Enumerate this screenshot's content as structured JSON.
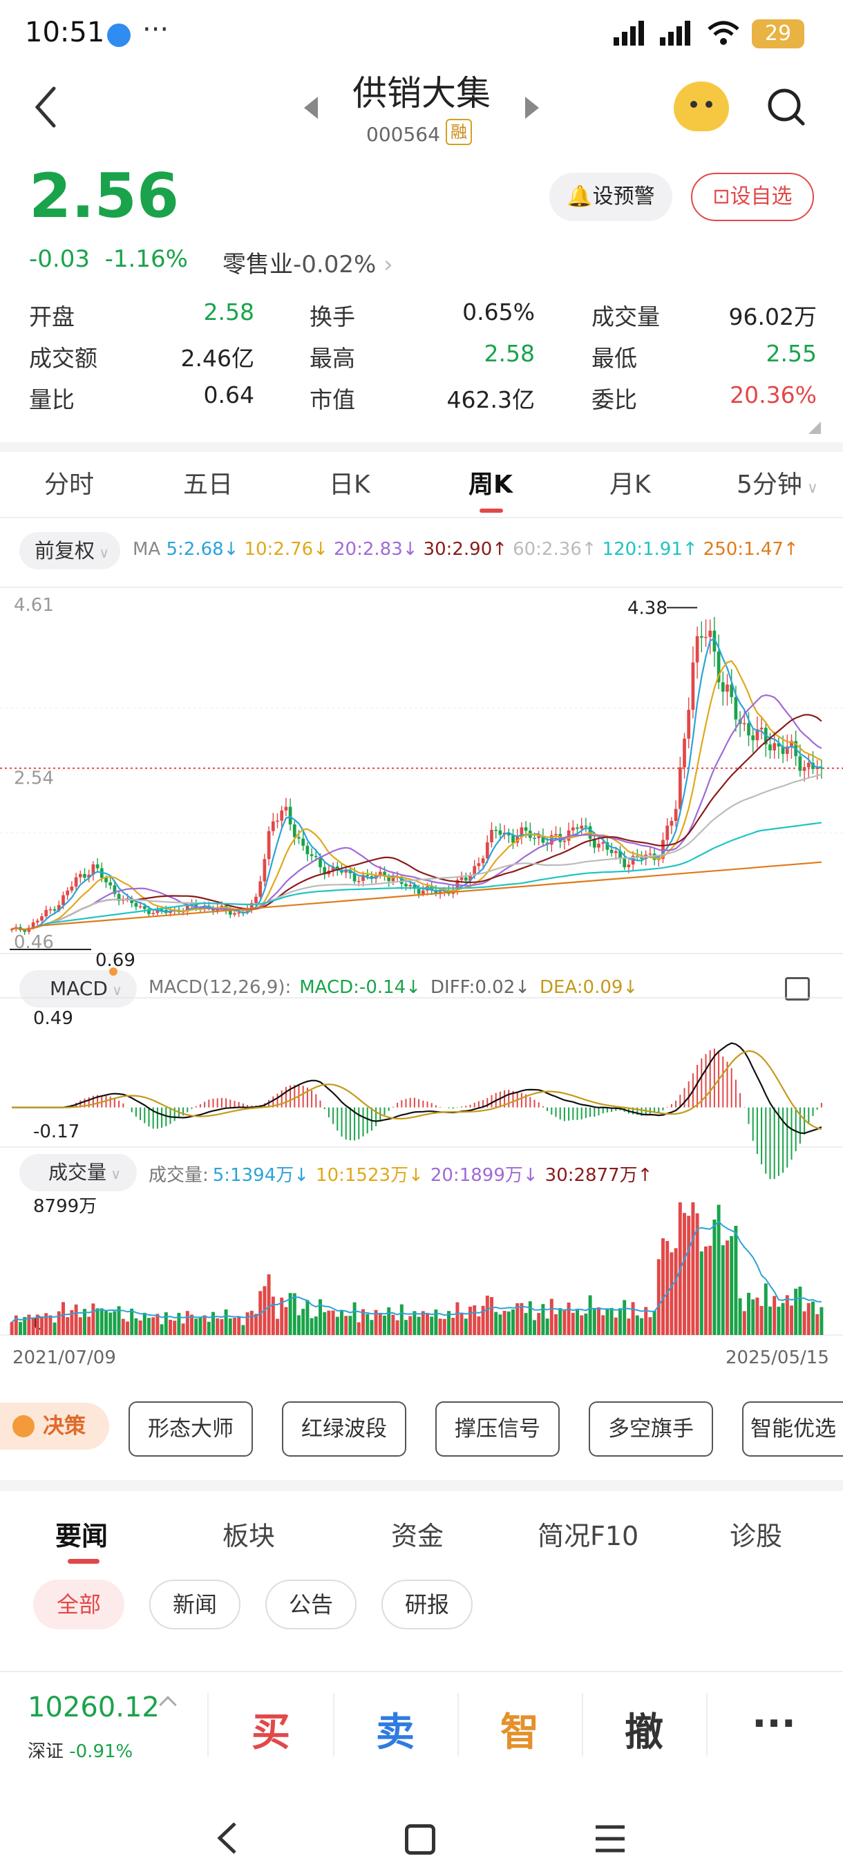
{
  "status_bar": {
    "time": "10:51",
    "battery": "29"
  },
  "header": {
    "stock_name": "供销大集",
    "stock_code": "000564",
    "margin_badge": "融"
  },
  "quote": {
    "price": "2.56",
    "change": "-0.03",
    "change_pct": "-1.16%",
    "sector_name": "零售业",
    "sector_change": "-0.02%",
    "alert_label": "设预警",
    "watchlist_label": "设自选",
    "price_color": "#1aa34a"
  },
  "stats": [
    {
      "label": "开盘",
      "value": "2.58",
      "tone": "green"
    },
    {
      "label": "换手",
      "value": "0.65%",
      "tone": "normal"
    },
    {
      "label": "成交量",
      "value": "96.02万",
      "tone": "normal"
    },
    {
      "label": "成交额",
      "value": "2.46亿",
      "tone": "normal"
    },
    {
      "label": "最高",
      "value": "2.58",
      "tone": "green"
    },
    {
      "label": "最低",
      "value": "2.55",
      "tone": "green"
    },
    {
      "label": "量比",
      "value": "0.64",
      "tone": "normal"
    },
    {
      "label": "市值",
      "value": "462.3亿",
      "tone": "normal"
    },
    {
      "label": "委比",
      "value": "20.36%",
      "tone": "red"
    }
  ],
  "kline_tabs": [
    "分时",
    "五日",
    "日K",
    "周K",
    "月K",
    "5分钟"
  ],
  "kline_active": "周K",
  "ma_bar": {
    "adjust_label": "前复权",
    "prefix": "MA",
    "items": [
      {
        "text": "5:2.68↓",
        "color": "#2aa3d9"
      },
      {
        "text": "10:2.76↓",
        "color": "#e0a81a"
      },
      {
        "text": "20:2.83↓",
        "color": "#a06ad8"
      },
      {
        "text": "30:2.90↑",
        "color": "#8b1a1a"
      },
      {
        "text": "60:2.36↑",
        "color": "#bbbbbb"
      },
      {
        "text": "120:1.91↑",
        "color": "#1fc3c3"
      },
      {
        "text": "250:1.47↑",
        "color": "#e07a1a"
      }
    ]
  },
  "macd_bar": {
    "button": "MACD",
    "params": "MACD(12,26,9):",
    "items": [
      {
        "text": "MACD:-0.14↓",
        "color": "#1aa34a"
      },
      {
        "text": "DIFF:0.02↓",
        "color": "#666666"
      },
      {
        "text": "DEA:0.09↓",
        "color": "#c49a1a"
      }
    ]
  },
  "volume_bar": {
    "button": "成交量",
    "prefix": "成交量:",
    "items": [
      {
        "text": "5:1394万↓",
        "color": "#2aa3d9"
      },
      {
        "text": "10:1523万↓",
        "color": "#e0a81a"
      },
      {
        "text": "20:1899万↓",
        "color": "#a06ad8"
      },
      {
        "text": "30:2877万↑",
        "color": "#8b1a1a"
      }
    ]
  },
  "chart_data": [
    {
      "type": "candlestick",
      "title": "",
      "y_top_label": "4.61",
      "y_mid_label": "2.54",
      "y_bottom_label": "0.46",
      "ylim": [
        0.46,
        4.61
      ],
      "max_annotation": "4.38",
      "min_annotation": "0.69",
      "current_price_line": 2.56,
      "series": [
        {
          "name": "MA5",
          "color": "#2aa3d9"
        },
        {
          "name": "MA10",
          "color": "#e0a81a"
        },
        {
          "name": "MA20",
          "color": "#a06ad8"
        },
        {
          "name": "MA30",
          "color": "#8b1a1a"
        },
        {
          "name": "MA60",
          "color": "#bbbbbb"
        },
        {
          "name": "MA120",
          "color": "#1fc3c3"
        },
        {
          "name": "MA250",
          "color": "#e07a1a"
        }
      ],
      "approx_close_trend": [
        0.72,
        0.75,
        0.9,
        1.05,
        1.3,
        1.45,
        1.22,
        1.05,
        0.98,
        0.92,
        0.95,
        0.98,
        1.0,
        0.95,
        0.92,
        1.0,
        1.95,
        2.05,
        1.65,
        1.45,
        1.4,
        1.35,
        1.3,
        1.38,
        1.25,
        1.2,
        1.15,
        1.18,
        1.3,
        1.55,
        1.9,
        1.75,
        1.85,
        1.7,
        1.8,
        1.9,
        1.75,
        1.6,
        1.5,
        1.55,
        1.6,
        2.1,
        3.7,
        4.2,
        3.4,
        3.1,
        2.9,
        2.85,
        2.75,
        2.6,
        2.56
      ]
    },
    {
      "type": "macd",
      "y_top_label": "0.49",
      "y_bottom_label": "-0.17",
      "ylim": [
        -0.17,
        0.49
      ],
      "macd": -0.14,
      "diff": 0.02,
      "dea": 0.09
    },
    {
      "type": "bar",
      "title": "成交量",
      "y_top_label": "8799万",
      "y_bottom_label": "0",
      "ylim": [
        0,
        8799
      ],
      "x_start": "2021/07/09",
      "x_end": "2025/05/15"
    }
  ],
  "decision": {
    "label": "决策",
    "tools": [
      "形态大师",
      "红绿波段",
      "撑压信号",
      "多空旗手",
      "智能优选"
    ]
  },
  "news_tabs": [
    "要闻",
    "板块",
    "资金",
    "简况F10",
    "诊股"
  ],
  "news_active": "要闻",
  "news_filters": [
    "全部",
    "新闻",
    "公告",
    "研报"
  ],
  "index": {
    "value": "10260.12",
    "name": "深证",
    "change": "-0.91%"
  },
  "actions": [
    {
      "label": "买",
      "color": "#e24848"
    },
    {
      "label": "卖",
      "color": "#2f7be0"
    },
    {
      "label": "智",
      "color": "#e5902a"
    },
    {
      "label": "撤",
      "color": "#333333"
    },
    {
      "label": "···",
      "color": "#333333"
    }
  ]
}
